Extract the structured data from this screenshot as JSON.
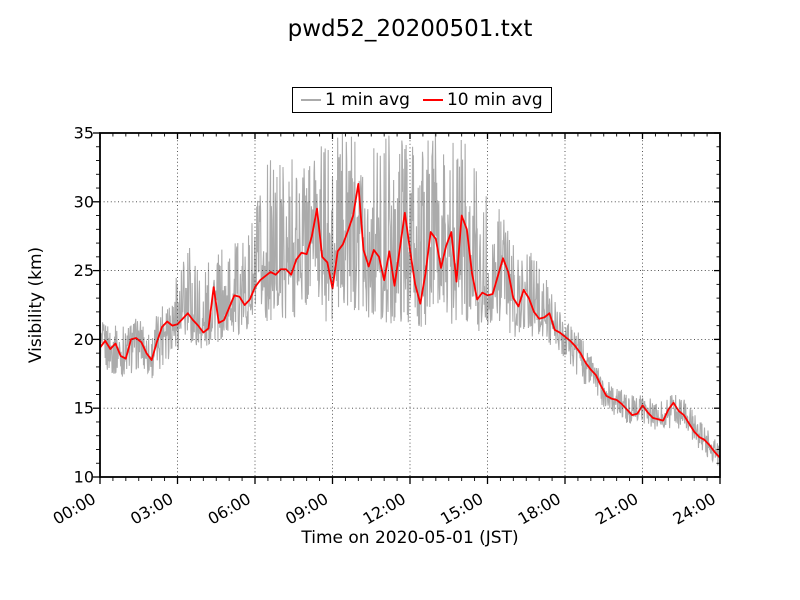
{
  "title": "pwd52_20200501.txt",
  "legend": {
    "items": [
      {
        "label": "1 min avg",
        "color": "#ababab"
      },
      {
        "label": "10 min avg",
        "color": "#ff0000"
      }
    ]
  },
  "chart_data": {
    "type": "line",
    "title": "pwd52_20200501.txt",
    "xlabel": "Time on 2020-05-01 (JST)",
    "ylabel": "Visibility (km)",
    "xlim": [
      0,
      24
    ],
    "ylim": [
      10,
      35
    ],
    "x_major_ticks": [
      0,
      3,
      6,
      9,
      12,
      15,
      18,
      21,
      24
    ],
    "x_major_tick_labels": [
      "00:00",
      "03:00",
      "06:00",
      "09:00",
      "12:00",
      "15:00",
      "18:00",
      "21:00",
      "24:00"
    ],
    "x_minor_tick_interval_hours": 0.5,
    "x_tick_label_rotation_deg": 30,
    "y_major_ticks": [
      10,
      15,
      20,
      25,
      30,
      35
    ],
    "y_minor_tick_interval": 1,
    "grid": {
      "style": "dotted",
      "on": "major ticks",
      "color": "#3a3a3a",
      "above_data": true
    },
    "legend_position": "top center, outside axes",
    "series": [
      {
        "name": "1 min avg",
        "color": "#ababab",
        "line_width": 1.1,
        "representation": "noisy 1-minute samples shown as min/max envelope sampled every 30 min",
        "envelope_t_hours_step": 0.5,
        "envelope_min": [
          17.6,
          17.3,
          17.2,
          17.8,
          17.0,
          18.2,
          19.2,
          19.4,
          19.2,
          19.6,
          20.0,
          20.4,
          20.8,
          21.2,
          21.5,
          21.5,
          21.8,
          22.0,
          20.5,
          22.3,
          22.0,
          21.5,
          21.0,
          21.3,
          20.8,
          19.8,
          20.8,
          21.0,
          21.3,
          20.5,
          20.8,
          21.3,
          20.0,
          20.3,
          19.6,
          19.0,
          18.6,
          17.3,
          16.2,
          14.9,
          14.4,
          13.7,
          13.8,
          13.3,
          13.5,
          13.5,
          12.4,
          11.4,
          10.6
        ],
        "envelope_max": [
          21.4,
          21.0,
          21.2,
          21.6,
          20.8,
          23.4,
          25.6,
          27.5,
          25.8,
          26.0,
          27.4,
          27.0,
          29.5,
          33.0,
          33.5,
          35.0,
          35.0,
          34.0,
          35.0,
          35.0,
          35.0,
          34.0,
          35.0,
          34.5,
          35.0,
          35.0,
          35.0,
          34.0,
          35.0,
          34.0,
          31.0,
          29.5,
          27.0,
          26.6,
          26.8,
          23.5,
          21.8,
          20.6,
          18.9,
          17.2,
          16.6,
          15.9,
          16.2,
          15.4,
          16.0,
          16.3,
          14.6,
          13.5,
          12.3
        ]
      },
      {
        "name": "10 min avg",
        "color": "#ff0000",
        "line_width": 1.8,
        "t_hours_step": 0.2,
        "values": [
          19.4,
          19.9,
          19.3,
          19.7,
          18.8,
          18.6,
          20.0,
          20.1,
          19.8,
          19.0,
          18.5,
          19.8,
          20.9,
          21.3,
          21.0,
          21.1,
          21.5,
          21.9,
          21.4,
          21.0,
          20.5,
          20.8,
          23.8,
          21.2,
          21.4,
          22.3,
          23.2,
          23.1,
          22.5,
          22.9,
          23.8,
          24.3,
          24.6,
          24.9,
          24.7,
          25.1,
          25.1,
          24.7,
          25.8,
          26.3,
          26.2,
          27.5,
          29.5,
          26.0,
          25.6,
          23.7,
          26.4,
          26.9,
          27.9,
          29.0,
          31.3,
          26.5,
          25.3,
          26.5,
          26.0,
          24.3,
          26.4,
          23.9,
          26.5,
          29.2,
          26.5,
          24.0,
          22.6,
          24.8,
          27.8,
          27.3,
          25.2,
          26.8,
          27.8,
          24.2,
          29.0,
          28.0,
          24.8,
          22.9,
          23.4,
          23.2,
          23.3,
          24.6,
          25.9,
          24.9,
          23.0,
          22.4,
          23.6,
          23.0,
          22.0,
          21.5,
          21.6,
          21.9,
          20.7,
          20.5,
          20.2,
          19.9,
          19.5,
          19.0,
          18.3,
          17.8,
          17.4,
          16.6,
          15.9,
          15.7,
          15.6,
          15.3,
          14.9,
          14.5,
          14.6,
          15.2,
          14.7,
          14.3,
          14.2,
          14.1,
          14.9,
          15.4,
          14.8,
          14.5,
          13.9,
          13.3,
          12.9,
          12.7,
          12.3,
          11.8,
          11.4
        ]
      }
    ]
  }
}
